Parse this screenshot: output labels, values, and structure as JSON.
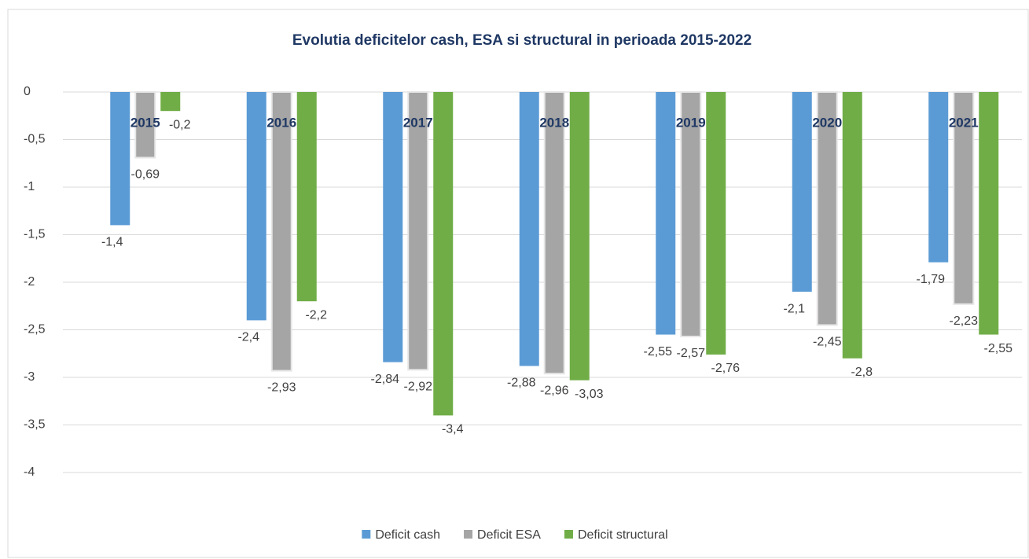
{
  "chart_data": {
    "type": "bar",
    "title": "Evolutia deficitelor cash, ESA si structural in perioada 2015-2022",
    "categories": [
      "2015",
      "2016",
      "2017",
      "2018",
      "2019",
      "2020",
      "2021"
    ],
    "series": [
      {
        "name": "Deficit cash",
        "color": "#5b9bd5",
        "values": [
          -1.4,
          -2.4,
          -2.84,
          -2.88,
          -2.55,
          -2.1,
          -1.79
        ],
        "value_labels": [
          "-1,4",
          "-2,4",
          "-2,84",
          "-2,88",
          "-2,55",
          "-2,1",
          "-1,79"
        ]
      },
      {
        "name": "Deficit ESA",
        "color": "#a5a5a5",
        "values": [
          -0.69,
          -2.93,
          -2.92,
          -2.96,
          -2.57,
          -2.45,
          -2.23
        ],
        "value_labels": [
          "-0,69",
          "-2,93",
          "-2,92",
          "-2,96",
          "-2,57",
          "-2,45",
          "-2,23"
        ]
      },
      {
        "name": "Deficit structural",
        "color": "#70ad47",
        "values": [
          -0.2,
          -2.2,
          -3.4,
          -3.03,
          -2.76,
          -2.8,
          -2.55
        ],
        "value_labels": [
          "-0,2",
          "-2,2",
          "-3,4",
          "-3,03",
          "-2,76",
          "-2,8",
          "-2,55"
        ]
      }
    ],
    "ylim": [
      -4,
      0
    ],
    "yticks": [
      0,
      {
        "value": -0.5,
        "label": "-0,5"
      },
      -1,
      {
        "value": -1.5,
        "label": "-1,5"
      },
      -2,
      {
        "value": -2.5,
        "label": "-2,5"
      },
      -3,
      {
        "value": -3.5,
        "label": "-3,5"
      },
      -4
    ],
    "grid": true,
    "legend": "bottom"
  }
}
